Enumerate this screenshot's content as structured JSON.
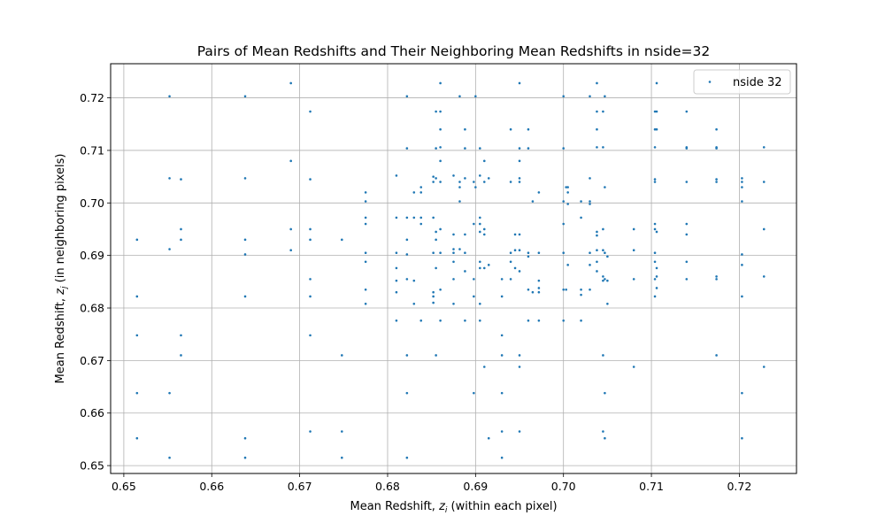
{
  "chart_data": {
    "type": "scatter",
    "title": "Pairs of Mean Redshifts and Their Neighboring Mean Redshifts in nside=32",
    "xlabel": {
      "prefix": "Mean Redshift, ",
      "var": "z",
      "sub": "i",
      "suffix": " (within each pixel)"
    },
    "ylabel": {
      "prefix": "Mean Redshift, ",
      "var": "z",
      "sub": "j",
      "suffix": " (in neighboring pixels)"
    },
    "xlim": [
      0.6485,
      0.7265
    ],
    "ylim": [
      0.6485,
      0.7265
    ],
    "xticks": [
      0.65,
      0.66,
      0.67,
      0.68,
      0.69,
      0.7,
      0.71,
      0.72
    ],
    "yticks": [
      0.65,
      0.66,
      0.67,
      0.68,
      0.69,
      0.7,
      0.71,
      0.72
    ],
    "xtick_labels": [
      "0.65",
      "0.66",
      "0.67",
      "0.68",
      "0.69",
      "0.70",
      "0.71",
      "0.72"
    ],
    "ytick_labels": [
      "0.65",
      "0.66",
      "0.67",
      "0.68",
      "0.69",
      "0.70",
      "0.71",
      "0.72"
    ],
    "grid": true,
    "legend_position": "top-right",
    "series": [
      {
        "name": "nside 32",
        "color": "#1f77b4",
        "points": [
          [
            0.6515,
            0.693
          ],
          [
            0.6515,
            0.6822
          ],
          [
            0.6515,
            0.6748
          ],
          [
            0.6515,
            0.6638
          ],
          [
            0.6515,
            0.6552
          ],
          [
            0.6552,
            0.7203
          ],
          [
            0.6552,
            0.7047
          ],
          [
            0.6552,
            0.6912
          ],
          [
            0.6552,
            0.6638
          ],
          [
            0.6552,
            0.6515
          ],
          [
            0.6565,
            0.7045
          ],
          [
            0.6565,
            0.695
          ],
          [
            0.6565,
            0.693
          ],
          [
            0.6565,
            0.6748
          ],
          [
            0.6565,
            0.671
          ],
          [
            0.6638,
            0.7203
          ],
          [
            0.6638,
            0.7047
          ],
          [
            0.6638,
            0.693
          ],
          [
            0.6638,
            0.6902
          ],
          [
            0.6638,
            0.6822
          ],
          [
            0.6638,
            0.6552
          ],
          [
            0.6638,
            0.6515
          ],
          [
            0.669,
            0.7228
          ],
          [
            0.669,
            0.708
          ],
          [
            0.669,
            0.695
          ],
          [
            0.669,
            0.691
          ],
          [
            0.6712,
            0.7174
          ],
          [
            0.6712,
            0.7045
          ],
          [
            0.6712,
            0.695
          ],
          [
            0.6712,
            0.693
          ],
          [
            0.6712,
            0.6855
          ],
          [
            0.6712,
            0.6822
          ],
          [
            0.6712,
            0.6748
          ],
          [
            0.6712,
            0.6565
          ],
          [
            0.6748,
            0.693
          ],
          [
            0.6748,
            0.671
          ],
          [
            0.6748,
            0.6565
          ],
          [
            0.6748,
            0.6515
          ],
          [
            0.6775,
            0.702
          ],
          [
            0.6775,
            0.7003
          ],
          [
            0.6775,
            0.6972
          ],
          [
            0.6775,
            0.696
          ],
          [
            0.6775,
            0.6905
          ],
          [
            0.6775,
            0.6888
          ],
          [
            0.6775,
            0.6835
          ],
          [
            0.6775,
            0.6808
          ],
          [
            0.681,
            0.7052
          ],
          [
            0.681,
            0.6972
          ],
          [
            0.681,
            0.6905
          ],
          [
            0.681,
            0.6876
          ],
          [
            0.681,
            0.6852
          ],
          [
            0.681,
            0.683
          ],
          [
            0.681,
            0.6776
          ],
          [
            0.6822,
            0.7203
          ],
          [
            0.6822,
            0.7104
          ],
          [
            0.6822,
            0.6972
          ],
          [
            0.6822,
            0.693
          ],
          [
            0.6822,
            0.6902
          ],
          [
            0.6822,
            0.6855
          ],
          [
            0.6822,
            0.671
          ],
          [
            0.6822,
            0.6638
          ],
          [
            0.6822,
            0.6515
          ],
          [
            0.683,
            0.702
          ],
          [
            0.683,
            0.6972
          ],
          [
            0.683,
            0.6852
          ],
          [
            0.683,
            0.6808
          ],
          [
            0.6838,
            0.703
          ],
          [
            0.6838,
            0.702
          ],
          [
            0.6838,
            0.6972
          ],
          [
            0.6838,
            0.696
          ],
          [
            0.6838,
            0.6776
          ],
          [
            0.6852,
            0.705
          ],
          [
            0.6852,
            0.704
          ],
          [
            0.6852,
            0.6972
          ],
          [
            0.6852,
            0.6905
          ],
          [
            0.6852,
            0.683
          ],
          [
            0.6852,
            0.6822
          ],
          [
            0.6852,
            0.681
          ],
          [
            0.6855,
            0.7174
          ],
          [
            0.6855,
            0.7104
          ],
          [
            0.6855,
            0.7047
          ],
          [
            0.6855,
            0.6945
          ],
          [
            0.6855,
            0.693
          ],
          [
            0.6855,
            0.6876
          ],
          [
            0.6855,
            0.671
          ],
          [
            0.686,
            0.7228
          ],
          [
            0.686,
            0.7174
          ],
          [
            0.686,
            0.714
          ],
          [
            0.686,
            0.7106
          ],
          [
            0.686,
            0.708
          ],
          [
            0.686,
            0.704
          ],
          [
            0.686,
            0.695
          ],
          [
            0.686,
            0.6905
          ],
          [
            0.686,
            0.6835
          ],
          [
            0.686,
            0.6776
          ],
          [
            0.6875,
            0.7052
          ],
          [
            0.6875,
            0.694
          ],
          [
            0.6875,
            0.6912
          ],
          [
            0.6875,
            0.6905
          ],
          [
            0.6875,
            0.6888
          ],
          [
            0.6875,
            0.6855
          ],
          [
            0.6875,
            0.6808
          ],
          [
            0.6882,
            0.7203
          ],
          [
            0.6882,
            0.704
          ],
          [
            0.6882,
            0.703
          ],
          [
            0.6882,
            0.7003
          ],
          [
            0.6882,
            0.6912
          ],
          [
            0.6888,
            0.714
          ],
          [
            0.6888,
            0.7104
          ],
          [
            0.6888,
            0.7047
          ],
          [
            0.6888,
            0.694
          ],
          [
            0.6888,
            0.6905
          ],
          [
            0.6888,
            0.687
          ],
          [
            0.6888,
            0.6776
          ],
          [
            0.6898,
            0.704
          ],
          [
            0.6898,
            0.696
          ],
          [
            0.6898,
            0.6855
          ],
          [
            0.6898,
            0.6822
          ],
          [
            0.6898,
            0.6638
          ],
          [
            0.69,
            0.7203
          ],
          [
            0.69,
            0.703
          ],
          [
            0.6905,
            0.7104
          ],
          [
            0.6905,
            0.7052
          ],
          [
            0.6905,
            0.6972
          ],
          [
            0.6905,
            0.696
          ],
          [
            0.6905,
            0.6945
          ],
          [
            0.6905,
            0.6888
          ],
          [
            0.6905,
            0.6876
          ],
          [
            0.6905,
            0.6808
          ],
          [
            0.6905,
            0.6776
          ],
          [
            0.691,
            0.708
          ],
          [
            0.691,
            0.704
          ],
          [
            0.691,
            0.695
          ],
          [
            0.691,
            0.694
          ],
          [
            0.691,
            0.6876
          ],
          [
            0.691,
            0.6688
          ],
          [
            0.6915,
            0.7047
          ],
          [
            0.6915,
            0.6882
          ],
          [
            0.6915,
            0.6552
          ],
          [
            0.693,
            0.6855
          ],
          [
            0.693,
            0.6822
          ],
          [
            0.693,
            0.6748
          ],
          [
            0.693,
            0.671
          ],
          [
            0.693,
            0.6638
          ],
          [
            0.693,
            0.6565
          ],
          [
            0.693,
            0.6515
          ],
          [
            0.694,
            0.714
          ],
          [
            0.694,
            0.704
          ],
          [
            0.694,
            0.6905
          ],
          [
            0.694,
            0.6888
          ],
          [
            0.694,
            0.6855
          ],
          [
            0.6945,
            0.694
          ],
          [
            0.6945,
            0.691
          ],
          [
            0.6945,
            0.6876
          ],
          [
            0.695,
            0.7228
          ],
          [
            0.695,
            0.7104
          ],
          [
            0.695,
            0.708
          ],
          [
            0.695,
            0.7047
          ],
          [
            0.695,
            0.704
          ],
          [
            0.695,
            0.694
          ],
          [
            0.695,
            0.691
          ],
          [
            0.695,
            0.687
          ],
          [
            0.695,
            0.671
          ],
          [
            0.695,
            0.6688
          ],
          [
            0.695,
            0.6565
          ],
          [
            0.696,
            0.714
          ],
          [
            0.696,
            0.7104
          ],
          [
            0.696,
            0.6905
          ],
          [
            0.696,
            0.6898
          ],
          [
            0.696,
            0.6835
          ],
          [
            0.696,
            0.6776
          ],
          [
            0.6965,
            0.7003
          ],
          [
            0.6965,
            0.683
          ],
          [
            0.6972,
            0.702
          ],
          [
            0.6972,
            0.6905
          ],
          [
            0.6972,
            0.6852
          ],
          [
            0.6972,
            0.6838
          ],
          [
            0.6972,
            0.683
          ],
          [
            0.6972,
            0.6776
          ],
          [
            0.7,
            0.7203
          ],
          [
            0.7,
            0.7104
          ],
          [
            0.7,
            0.7003
          ],
          [
            0.7,
            0.696
          ],
          [
            0.7,
            0.6905
          ],
          [
            0.7,
            0.6835
          ],
          [
            0.7,
            0.6776
          ],
          [
            0.7003,
            0.703
          ],
          [
            0.7003,
            0.6835
          ],
          [
            0.7005,
            0.702
          ],
          [
            0.7005,
            0.703
          ],
          [
            0.7005,
            0.6998
          ],
          [
            0.7005,
            0.6882
          ],
          [
            0.702,
            0.7003
          ],
          [
            0.702,
            0.6972
          ],
          [
            0.702,
            0.6835
          ],
          [
            0.702,
            0.6825
          ],
          [
            0.702,
            0.6776
          ],
          [
            0.703,
            0.7203
          ],
          [
            0.703,
            0.7047
          ],
          [
            0.703,
            0.7003
          ],
          [
            0.703,
            0.6998
          ],
          [
            0.703,
            0.6905
          ],
          [
            0.703,
            0.6882
          ],
          [
            0.703,
            0.6835
          ],
          [
            0.7038,
            0.7228
          ],
          [
            0.7038,
            0.7174
          ],
          [
            0.7038,
            0.714
          ],
          [
            0.7038,
            0.7106
          ],
          [
            0.7038,
            0.6945
          ],
          [
            0.7038,
            0.6938
          ],
          [
            0.7038,
            0.691
          ],
          [
            0.7038,
            0.6888
          ],
          [
            0.7038,
            0.687
          ],
          [
            0.7045,
            0.7174
          ],
          [
            0.7045,
            0.7106
          ],
          [
            0.7045,
            0.695
          ],
          [
            0.7045,
            0.691
          ],
          [
            0.7045,
            0.686
          ],
          [
            0.7045,
            0.6852
          ],
          [
            0.7045,
            0.671
          ],
          [
            0.7045,
            0.6565
          ],
          [
            0.7047,
            0.7203
          ],
          [
            0.7047,
            0.703
          ],
          [
            0.7047,
            0.6905
          ],
          [
            0.7047,
            0.6855
          ],
          [
            0.7047,
            0.6638
          ],
          [
            0.7047,
            0.6552
          ],
          [
            0.705,
            0.6898
          ],
          [
            0.705,
            0.6852
          ],
          [
            0.705,
            0.6808
          ],
          [
            0.708,
            0.695
          ],
          [
            0.708,
            0.691
          ],
          [
            0.708,
            0.6855
          ],
          [
            0.708,
            0.6688
          ],
          [
            0.7104,
            0.7174
          ],
          [
            0.7104,
            0.714
          ],
          [
            0.7104,
            0.7106
          ],
          [
            0.7104,
            0.7045
          ],
          [
            0.7104,
            0.704
          ],
          [
            0.7104,
            0.696
          ],
          [
            0.7104,
            0.695
          ],
          [
            0.7104,
            0.6905
          ],
          [
            0.7104,
            0.6888
          ],
          [
            0.7104,
            0.6855
          ],
          [
            0.7104,
            0.6822
          ],
          [
            0.7106,
            0.7228
          ],
          [
            0.7106,
            0.7174
          ],
          [
            0.7106,
            0.714
          ],
          [
            0.7106,
            0.6945
          ],
          [
            0.7106,
            0.6876
          ],
          [
            0.7106,
            0.686
          ],
          [
            0.7106,
            0.6838
          ],
          [
            0.714,
            0.7174
          ],
          [
            0.714,
            0.7106
          ],
          [
            0.714,
            0.7104
          ],
          [
            0.714,
            0.704
          ],
          [
            0.714,
            0.696
          ],
          [
            0.714,
            0.694
          ],
          [
            0.714,
            0.6888
          ],
          [
            0.714,
            0.6855
          ],
          [
            0.7174,
            0.714
          ],
          [
            0.7174,
            0.7106
          ],
          [
            0.7174,
            0.7104
          ],
          [
            0.7174,
            0.7045
          ],
          [
            0.7174,
            0.704
          ],
          [
            0.7174,
            0.686
          ],
          [
            0.7174,
            0.6855
          ],
          [
            0.7174,
            0.671
          ],
          [
            0.7203,
            0.7047
          ],
          [
            0.7203,
            0.704
          ],
          [
            0.7203,
            0.703
          ],
          [
            0.7203,
            0.7003
          ],
          [
            0.7203,
            0.6902
          ],
          [
            0.7203,
            0.6882
          ],
          [
            0.7203,
            0.6822
          ],
          [
            0.7203,
            0.6638
          ],
          [
            0.7203,
            0.6552
          ],
          [
            0.7228,
            0.7106
          ],
          [
            0.7228,
            0.704
          ],
          [
            0.7228,
            0.695
          ],
          [
            0.7228,
            0.686
          ],
          [
            0.7228,
            0.6688
          ]
        ]
      }
    ]
  }
}
